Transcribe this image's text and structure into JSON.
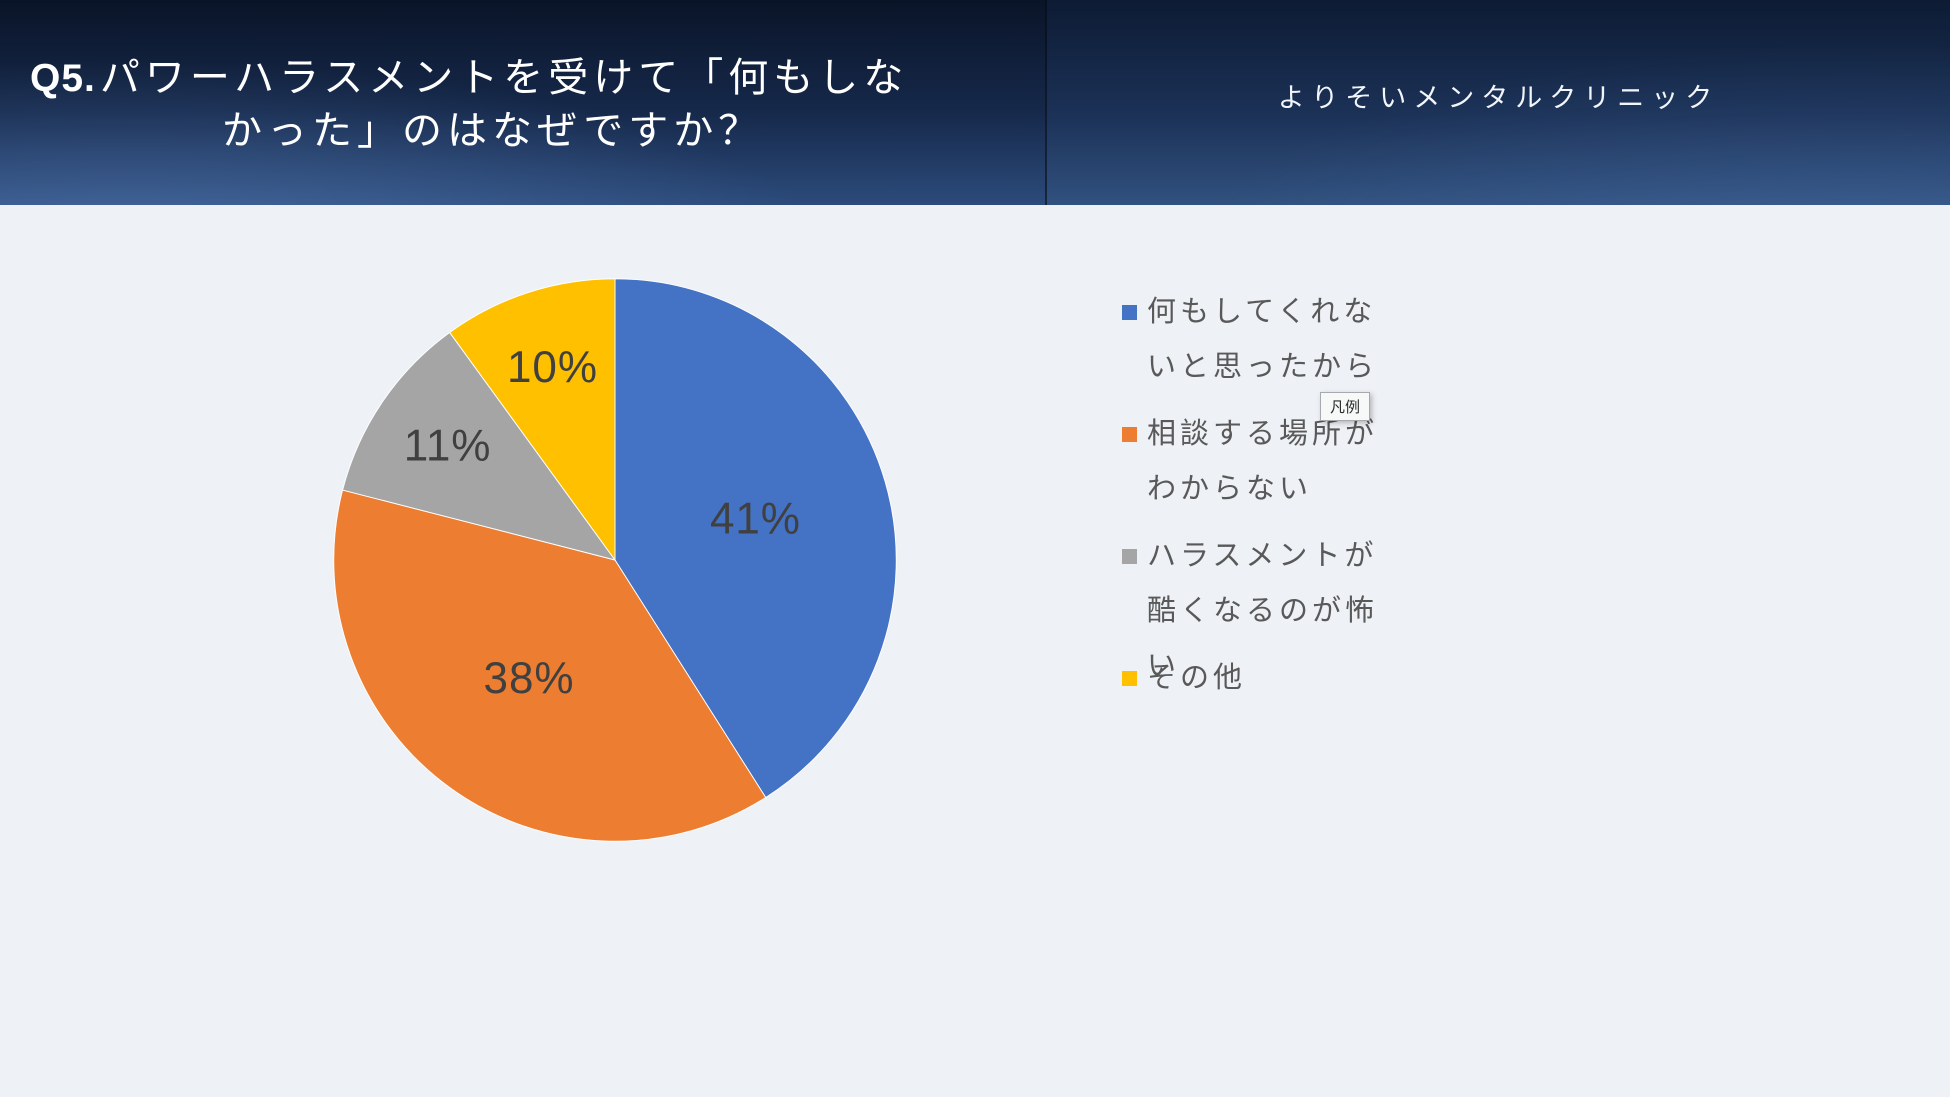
{
  "header": {
    "question_prefix": "Q5.",
    "title_line1": "パワーハラスメントを受けて「何もしな",
    "title_line2": "かった」のはなぜですか？",
    "brand": "よりそいメンタルクリニック"
  },
  "tooltip": {
    "label": "凡例"
  },
  "chart_data": {
    "type": "pie",
    "start_angle_deg": 0,
    "direction": "clockwise",
    "legend_position": "right",
    "background": "#EEF1F6",
    "label_color": "#404040",
    "slices": [
      {
        "label": "何もしてくれないと思ったから",
        "value": 41,
        "percent_label": "41%",
        "color": "#4472C4"
      },
      {
        "label": "相談する場所がわからない",
        "value": 38,
        "percent_label": "38%",
        "color": "#ED7D31"
      },
      {
        "label": "ハラスメントが酷くなるのが怖い",
        "value": 11,
        "percent_label": "11%",
        "color": "#A5A5A5"
      },
      {
        "label": "その他",
        "value": 10,
        "percent_label": "10%",
        "color": "#FFC000"
      }
    ]
  }
}
